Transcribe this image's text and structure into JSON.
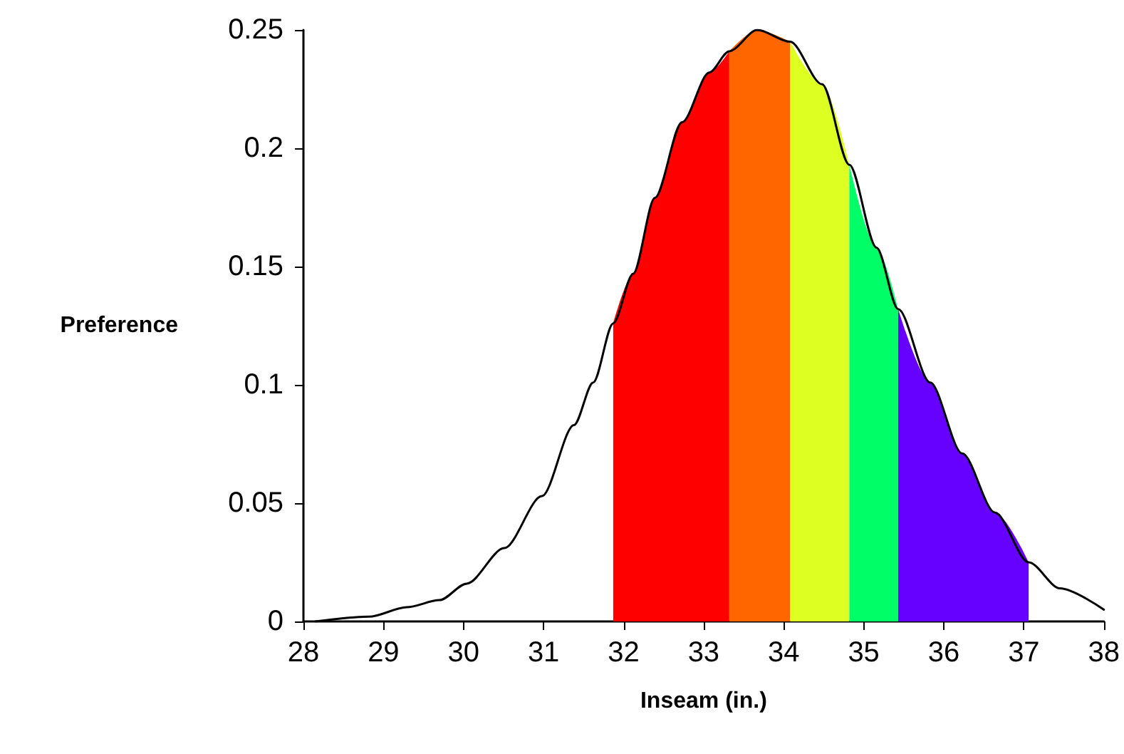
{
  "chart_data": {
    "type": "line",
    "xlabel": "Inseam (in.)",
    "ylabel": "Preference",
    "xlim": [
      28,
      38
    ],
    "xticks": [
      28,
      29,
      30,
      31,
      32,
      33,
      34,
      35,
      36,
      37,
      38
    ],
    "ylim": [
      0,
      0.25
    ],
    "yticks": [
      0,
      0.05,
      0.1,
      0.15,
      0.2,
      0.25
    ],
    "grid": false,
    "marker": "none",
    "line_style": "solid",
    "series": [
      {
        "type": "area",
        "color": "#ff0000",
        "x": [
          31.87,
          32.12,
          32.39,
          32.73,
          33.07,
          33.32
        ],
        "values": [
          0.126,
          0.147,
          0.179,
          0.211,
          0.232,
          0.241
        ]
      },
      {
        "type": "area",
        "color": "#ff6600",
        "x": [
          33.32,
          33.67,
          34.08
        ],
        "values": [
          0.241,
          0.25,
          0.245
        ]
      },
      {
        "type": "area",
        "color": "#ddff22",
        "x": [
          34.08,
          34.48,
          34.82
        ],
        "values": [
          0.245,
          0.227,
          0.193
        ]
      },
      {
        "type": "area",
        "color": "#00ff66",
        "x": [
          34.82,
          35.16,
          35.43
        ],
        "values": [
          0.193,
          0.158,
          0.132
        ]
      },
      {
        "type": "area",
        "color": "#6600ff",
        "x": [
          35.43,
          35.83,
          36.23,
          36.64,
          37.06
        ],
        "values": [
          0.132,
          0.101,
          0.071,
          0.046,
          0.025
        ]
      },
      {
        "color": "#000000",
        "x": [
          28.15,
          28.82,
          29.29,
          29.7,
          30.04,
          30.51,
          30.98,
          31.38,
          31.62,
          31.87,
          32.12,
          32.39,
          32.73,
          33.07,
          33.32,
          33.67,
          34.08,
          34.48,
          34.82,
          35.16,
          35.43,
          35.83,
          36.23,
          36.64,
          37.06,
          37.45,
          38
        ],
        "values": [
          0,
          0.002,
          0.006,
          0.009,
          0.016,
          0.031,
          0.053,
          0.083,
          0.101,
          0.126,
          0.147,
          0.179,
          0.211,
          0.232,
          0.241,
          0.25,
          0.245,
          0.227,
          0.193,
          0.158,
          0.132,
          0.101,
          0.071,
          0.046,
          0.025,
          0.014,
          0.005
        ]
      }
    ]
  }
}
